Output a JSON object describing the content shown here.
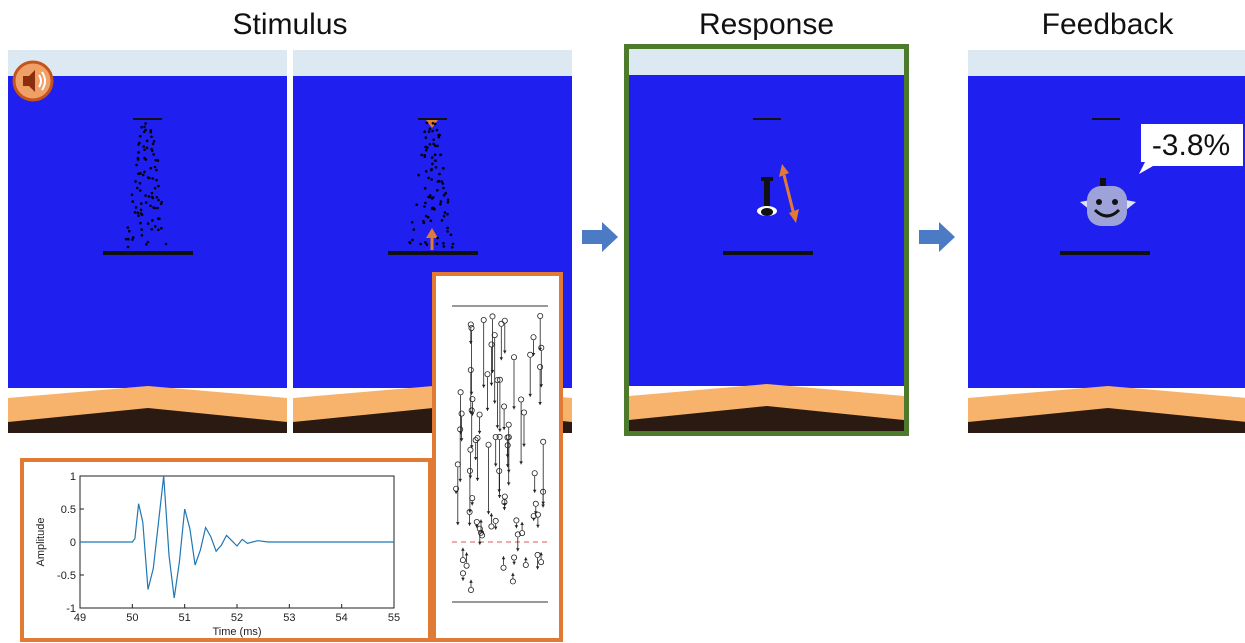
{
  "headings": {
    "stimulus": "Stimulus",
    "response": "Response",
    "feedback": "Feedback"
  },
  "feedback": {
    "score": "-3.8%"
  },
  "colors": {
    "sea": "#1f1ff0",
    "sky": "#dce9f3",
    "sand": "#f7b26c",
    "orange_accent": "#e07a35",
    "green_frame": "#4e7a2c",
    "flow_arrow": "#4a7bc4"
  },
  "icons": [
    "speaker-icon",
    "right-arrow-icon",
    "submarine-icon",
    "whale-icon"
  ],
  "chart_data": [
    {
      "type": "line",
      "title": "",
      "xlabel": "Time (ms)",
      "ylabel": "Amplitude",
      "xlim": [
        49,
        55
      ],
      "ylim": [
        -1,
        1
      ],
      "x_ticks": [
        "49",
        "50",
        "51",
        "52",
        "53",
        "54",
        "55"
      ],
      "y_ticks": [
        "1",
        "0.5",
        "0",
        "-0.5",
        "-1"
      ],
      "series": [
        {
          "x": [
            49,
            50,
            50.05,
            50.12,
            50.2,
            50.3,
            50.4,
            50.5,
            50.6,
            50.7,
            50.8,
            50.9,
            51.0,
            51.1,
            51.2,
            51.3,
            51.4,
            51.5,
            51.6,
            51.7,
            51.8,
            51.9,
            52.0,
            52.1,
            52.2,
            52.4,
            52.6,
            53,
            55
          ],
          "y": [
            0,
            0,
            0.05,
            0.58,
            0.3,
            -0.72,
            -0.4,
            0.3,
            1.0,
            -0.2,
            -0.85,
            -0.3,
            0.5,
            0.2,
            -0.35,
            -0.12,
            0.22,
            0.08,
            -0.14,
            -0.05,
            0.1,
            0.02,
            -0.06,
            0.04,
            -0.02,
            0.02,
            0,
            0,
            0
          ]
        }
      ]
    }
  ]
}
